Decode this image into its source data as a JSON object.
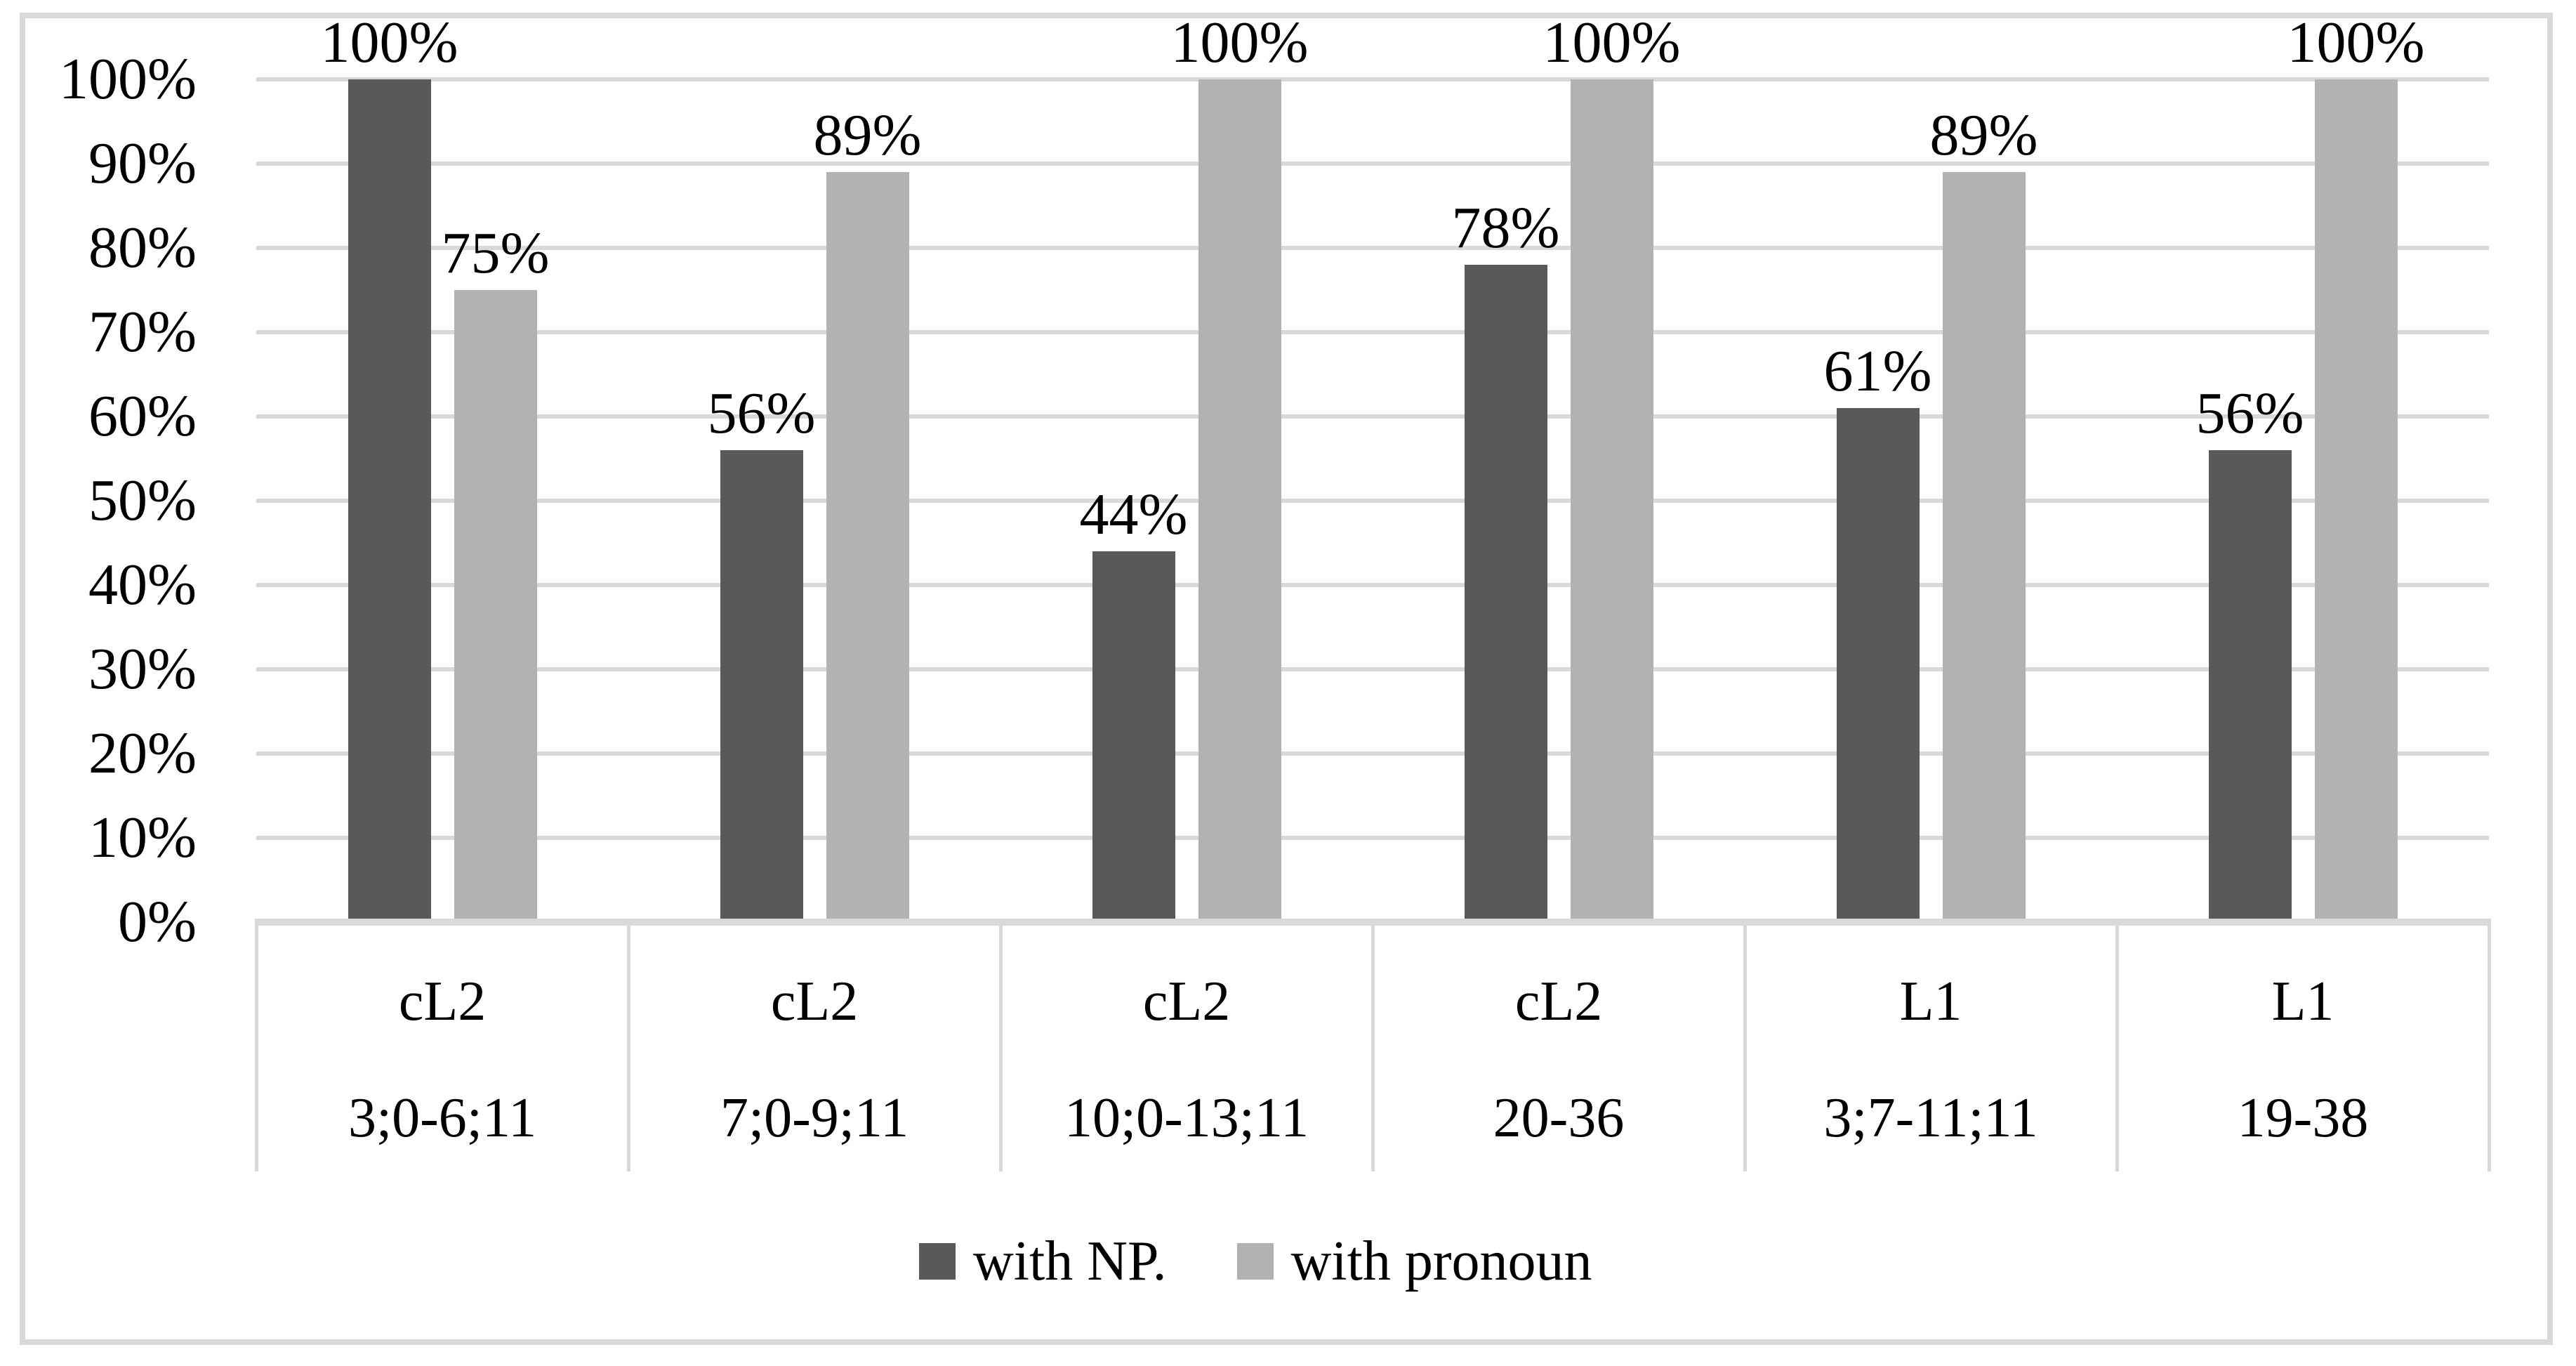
{
  "figure": {
    "background_color": "#ffffff",
    "border_color": "#d9d9d9"
  },
  "chart_data": {
    "type": "bar",
    "title": "",
    "xlabel": "",
    "ylabel": "",
    "categories": [
      {
        "group": "cL2",
        "age_range": "3;0-6;11"
      },
      {
        "group": "cL2",
        "age_range": "7;0-9;11"
      },
      {
        "group": "cL2",
        "age_range": "10;0-13;11"
      },
      {
        "group": "cL2",
        "age_range": "20-36"
      },
      {
        "group": "L1",
        "age_range": "3;7-11;11"
      },
      {
        "group": "L1",
        "age_range": "19-38"
      }
    ],
    "series": [
      {
        "name": "with NP.",
        "color": "#595959",
        "values": [
          100,
          56,
          44,
          78,
          61,
          56
        ],
        "value_labels": [
          "100%",
          "56%",
          "44%",
          "78%",
          "61%",
          "56%"
        ]
      },
      {
        "name": "with pronoun",
        "color": "#b2b2b2",
        "values": [
          75,
          89,
          100,
          100,
          89,
          100
        ],
        "value_labels": [
          "75%",
          "89%",
          "100%",
          "100%",
          "89%",
          "100%"
        ]
      }
    ],
    "y_axis": {
      "min": 0,
      "max": 100,
      "step": 10,
      "tick_labels": [
        "0%",
        "10%",
        "20%",
        "30%",
        "40%",
        "50%",
        "60%",
        "70%",
        "80%",
        "90%",
        "100%"
      ]
    },
    "grid": true,
    "gridline_color": "#d9d9d9",
    "axis_line_color": "#d9d9d9",
    "category_border_color": "#d9d9d9",
    "text_color": "#000000",
    "legend_position": "bottom"
  }
}
